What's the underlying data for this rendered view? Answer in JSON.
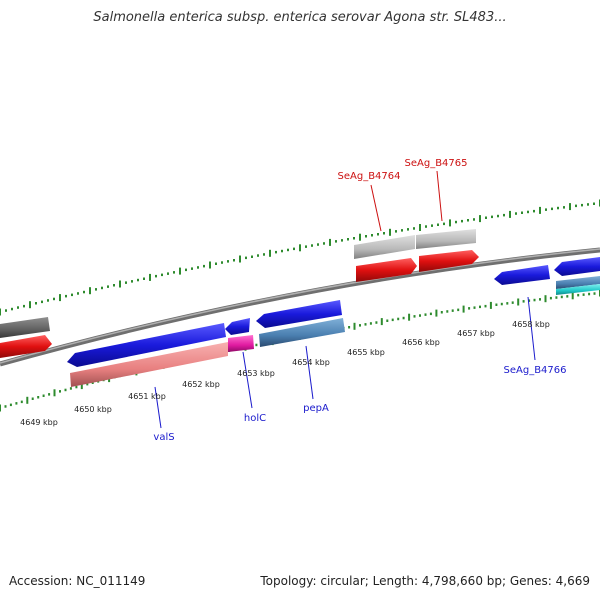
{
  "header": {
    "title": "Salmonella enterica subsp. enterica serovar Agona str. SL483..."
  },
  "footer": {
    "accession": "Accession: NC_011149",
    "summary": "Topology: circular; Length: 4,798,660 bp; Genes: 4,669"
  },
  "scale": {
    "tick_labels": [
      "4649 kbp",
      "4650 kbp",
      "4651 kbp",
      "4652 kbp",
      "4653 kbp",
      "4654 kbp",
      "4655 kbp",
      "4656 kbp",
      "4657 kbp",
      "4658 kbp"
    ]
  },
  "gene_labels": {
    "valS": "valS",
    "holC": "holC",
    "pepA": "pepA",
    "SeAg_B4764": "SeAg_B4764",
    "SeAg_B4765": "SeAg_B4765",
    "SeAg_B4766": "SeAg_B4766"
  },
  "colors": {
    "backbone": "#7a7a7a",
    "tick": "#2e8b2e",
    "gene_blue": "#1a1adc",
    "gene_red": "#e01010",
    "cds_salmon": "#e88080",
    "cds_magenta": "#e01aa0",
    "cds_steel": "#4a7fb0",
    "cds_gray": "#b8b8b8",
    "cds_darkgray": "#606060",
    "cds_cyan": "#20c8c8",
    "label_blue": "#1a1acc",
    "label_red": "#cc1010"
  }
}
